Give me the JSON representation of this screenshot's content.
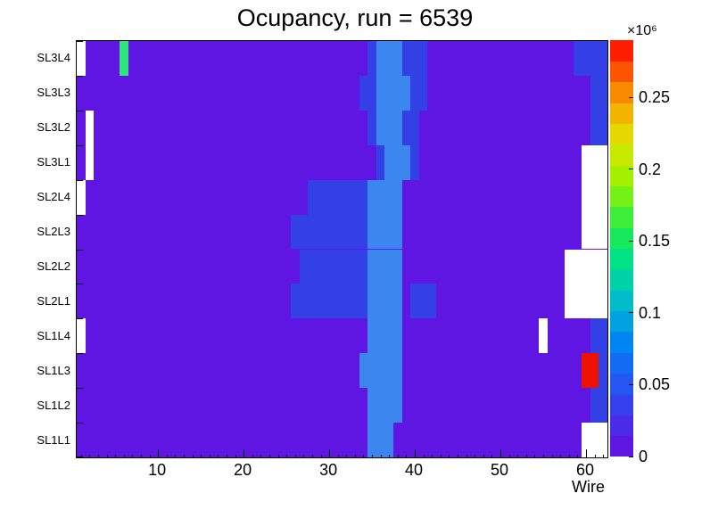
{
  "chart_data": {
    "type": "heatmap",
    "title": "Ocupancy, run = 6539",
    "xlabel": "Wire",
    "x_min": 0.5,
    "x_max": 62.5,
    "n_wires": 62,
    "x_major_ticks": [
      10,
      20,
      30,
      40,
      50,
      60
    ],
    "rows_top_to_bottom": [
      "SL3L4",
      "SL3L3",
      "SL3L2",
      "SL3L1",
      "SL2L4",
      "SL2L3",
      "SL2L2",
      "SL2L1",
      "SL1L4",
      "SL1L3",
      "SL1L2",
      "SL1L1"
    ],
    "z_axis": {
      "min": 0,
      "max": 0.29,
      "units": "1e6 counts",
      "exponent_label": "×10⁶",
      "ticks": [
        {
          "value": 0,
          "label": "0"
        },
        {
          "value": 0.05,
          "label": "0.05"
        },
        {
          "value": 0.1,
          "label": "0.1"
        },
        {
          "value": 0.15,
          "label": "0.15"
        },
        {
          "value": 0.2,
          "label": "0.2"
        },
        {
          "value": 0.25,
          "label": "0.25"
        }
      ]
    },
    "palette": {
      "default": "purple",
      "colors": {
        "purple": "#6016e3",
        "blue": "#3340e6",
        "lightblue": "#3c86f0",
        "green": "#2ee580",
        "red": "#ee1100",
        "empty": "#ffffff"
      },
      "approx_values_1e6": {
        "purple": 0.01,
        "blue": 0.05,
        "lightblue": 0.07,
        "green": 0.16,
        "red": 0.28,
        "empty": 0
      }
    },
    "colorbar_colors_bottom_to_top": [
      "#6016e3",
      "#4b2ae8",
      "#3640ec",
      "#2457f0",
      "#126df4",
      "#0086f2",
      "#00a2e0",
      "#00bcc8",
      "#00d2a8",
      "#00e286",
      "#16e95e",
      "#3fee38",
      "#74f218",
      "#a4f000",
      "#c8ea00",
      "#e4d800",
      "#f2b400",
      "#f88a00",
      "#fc5400",
      "#ff1e00"
    ],
    "features": [
      {
        "row": "SL3L4",
        "wires": [
          1,
          1
        ],
        "color": "empty",
        "value": 0
      },
      {
        "row": "SL3L4",
        "wires": [
          6,
          6
        ],
        "color": "green",
        "value": 0.16
      },
      {
        "row": "SL3L4",
        "wires": [
          35,
          41
        ],
        "color": "blue",
        "value": 0.05
      },
      {
        "row": "SL3L4",
        "wires": [
          36,
          38
        ],
        "color": "lightblue",
        "value": 0.07
      },
      {
        "row": "SL3L4",
        "wires": [
          59,
          62
        ],
        "color": "blue",
        "value": 0.05
      },
      {
        "row": "SL3L3",
        "wires": [
          34,
          41
        ],
        "color": "blue",
        "value": 0.05
      },
      {
        "row": "SL3L3",
        "wires": [
          36,
          39
        ],
        "color": "lightblue",
        "value": 0.07
      },
      {
        "row": "SL3L3",
        "wires": [
          61,
          62
        ],
        "color": "blue",
        "value": 0.05
      },
      {
        "row": "SL3L2",
        "wires": [
          2,
          2
        ],
        "color": "empty",
        "value": 0
      },
      {
        "row": "SL3L2",
        "wires": [
          35,
          40
        ],
        "color": "blue",
        "value": 0.05
      },
      {
        "row": "SL3L2",
        "wires": [
          36,
          38
        ],
        "color": "lightblue",
        "value": 0.07
      },
      {
        "row": "SL3L2",
        "wires": [
          61,
          62
        ],
        "color": "blue",
        "value": 0.05
      },
      {
        "row": "SL3L1",
        "wires": [
          2,
          2
        ],
        "color": "empty",
        "value": 0
      },
      {
        "row": "SL3L1",
        "wires": [
          36,
          40
        ],
        "color": "blue",
        "value": 0.05
      },
      {
        "row": "SL3L1",
        "wires": [
          37,
          39
        ],
        "color": "lightblue",
        "value": 0.07
      },
      {
        "row": "SL3L1",
        "wires": [
          60,
          62
        ],
        "color": "empty",
        "value": 0
      },
      {
        "row": "SL2L4",
        "wires": [
          1,
          1
        ],
        "color": "empty",
        "value": 0
      },
      {
        "row": "SL2L4",
        "wires": [
          28,
          34
        ],
        "color": "blue",
        "value": 0.05
      },
      {
        "row": "SL2L4",
        "wires": [
          35,
          38
        ],
        "color": "lightblue",
        "value": 0.07
      },
      {
        "row": "SL2L4",
        "wires": [
          60,
          62
        ],
        "color": "empty",
        "value": 0
      },
      {
        "row": "SL2L3",
        "wires": [
          26,
          34
        ],
        "color": "blue",
        "value": 0.05
      },
      {
        "row": "SL2L3",
        "wires": [
          35,
          38
        ],
        "color": "lightblue",
        "value": 0.07
      },
      {
        "row": "SL2L3",
        "wires": [
          60,
          62
        ],
        "color": "empty",
        "value": 0
      },
      {
        "row": "SL2L2",
        "wires": [
          27,
          34
        ],
        "color": "blue",
        "value": 0.05
      },
      {
        "row": "SL2L2",
        "wires": [
          35,
          38
        ],
        "color": "lightblue",
        "value": 0.07
      },
      {
        "row": "SL2L2",
        "wires": [
          58,
          62
        ],
        "color": "empty",
        "value": 0
      },
      {
        "row": "SL2L1",
        "wires": [
          26,
          34
        ],
        "color": "blue",
        "value": 0.05
      },
      {
        "row": "SL2L1",
        "wires": [
          35,
          38
        ],
        "color": "lightblue",
        "value": 0.07
      },
      {
        "row": "SL2L1",
        "wires": [
          40,
          42
        ],
        "color": "blue",
        "value": 0.05
      },
      {
        "row": "SL2L1",
        "wires": [
          58,
          62
        ],
        "color": "empty",
        "value": 0
      },
      {
        "row": "SL1L4",
        "wires": [
          1,
          1
        ],
        "color": "empty",
        "value": 0
      },
      {
        "row": "SL1L4",
        "wires": [
          35,
          38
        ],
        "color": "lightblue",
        "value": 0.07
      },
      {
        "row": "SL1L4",
        "wires": [
          55,
          55
        ],
        "color": "empty",
        "value": 0
      },
      {
        "row": "SL1L4",
        "wires": [
          61,
          62
        ],
        "color": "blue",
        "value": 0.05
      },
      {
        "row": "SL1L3",
        "wires": [
          34,
          38
        ],
        "color": "lightblue",
        "value": 0.07
      },
      {
        "row": "SL1L3",
        "wires": [
          60,
          61
        ],
        "color": "red",
        "value": 0.28
      },
      {
        "row": "SL1L3",
        "wires": [
          62,
          62
        ],
        "color": "blue",
        "value": 0.05
      },
      {
        "row": "SL1L2",
        "wires": [
          35,
          38
        ],
        "color": "lightblue",
        "value": 0.07
      },
      {
        "row": "SL1L2",
        "wires": [
          61,
          62
        ],
        "color": "blue",
        "value": 0.05
      },
      {
        "row": "SL1L1",
        "wires": [
          35,
          37
        ],
        "color": "lightblue",
        "value": 0.07
      },
      {
        "row": "SL1L1",
        "wires": [
          60,
          62
        ],
        "color": "empty",
        "value": 0
      }
    ]
  }
}
